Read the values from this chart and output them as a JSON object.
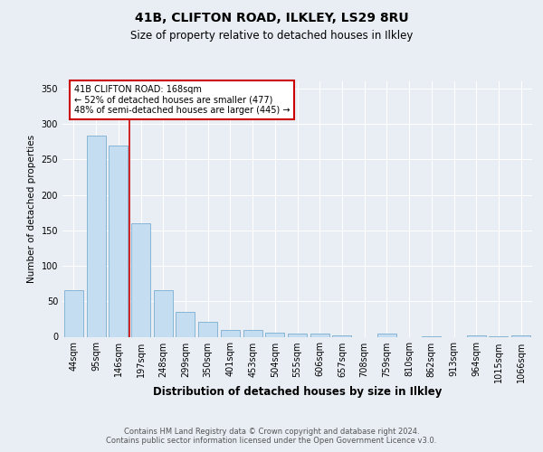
{
  "title1": "41B, CLIFTON ROAD, ILKLEY, LS29 8RU",
  "title2": "Size of property relative to detached houses in Ilkley",
  "xlabel": "Distribution of detached houses by size in Ilkley",
  "ylabel": "Number of detached properties",
  "categories": [
    "44sqm",
    "95sqm",
    "146sqm",
    "197sqm",
    "248sqm",
    "299sqm",
    "350sqm",
    "401sqm",
    "453sqm",
    "504sqm",
    "555sqm",
    "606sqm",
    "657sqm",
    "708sqm",
    "759sqm",
    "810sqm",
    "862sqm",
    "913sqm",
    "964sqm",
    "1015sqm",
    "1066sqm"
  ],
  "values": [
    65,
    283,
    270,
    160,
    65,
    35,
    21,
    10,
    10,
    6,
    5,
    4,
    2,
    0,
    4,
    0,
    1,
    0,
    2,
    1,
    2
  ],
  "bar_color": "#c5ddf0",
  "bar_edge_color": "#7aadcf",
  "vline_color": "#cc0000",
  "annotation_line1": "41B CLIFTON ROAD: 168sqm",
  "annotation_line2": "← 52% of detached houses are smaller (477)",
  "annotation_line3": "48% of semi-detached houses are larger (445) →",
  "annotation_box_edge": "#cc0000",
  "footer": "Contains HM Land Registry data © Crown copyright and database right 2024.\nContains public sector information licensed under the Open Government Licence v3.0.",
  "ylim": [
    0,
    360
  ],
  "background_color": "#e8eef4",
  "plot_background": "#e8eef4",
  "grid_color": "#ffffff",
  "title1_fontsize": 10,
  "title2_fontsize": 8.5,
  "xlabel_fontsize": 8.5,
  "ylabel_fontsize": 7.5,
  "tick_fontsize": 7,
  "annot_fontsize": 7,
  "footer_fontsize": 6
}
